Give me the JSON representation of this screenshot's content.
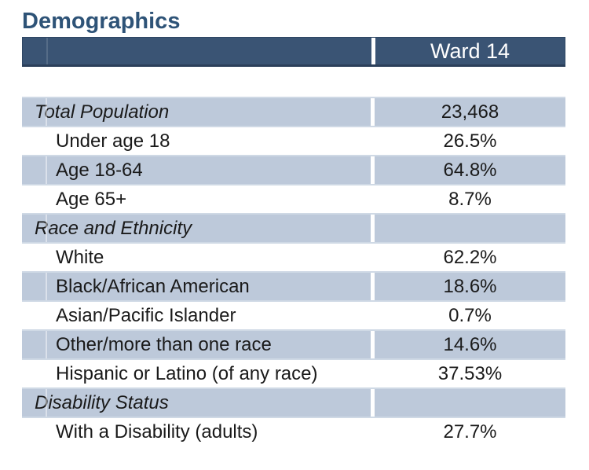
{
  "title": "Demographics",
  "table": {
    "header": {
      "value_col": "Ward 14"
    },
    "rows": [
      {
        "label": "Total Population",
        "value": "23,468",
        "type": "section",
        "shaded": true
      },
      {
        "label": "Under age 18",
        "value": "26.5%",
        "type": "item",
        "shaded": false
      },
      {
        "label": "Age 18-64",
        "value": "64.8%",
        "type": "item",
        "shaded": true
      },
      {
        "label": "Age 65+",
        "value": "8.7%",
        "type": "item",
        "shaded": false
      },
      {
        "label": "Race and Ethnicity",
        "value": "",
        "type": "section",
        "shaded": true
      },
      {
        "label": "White",
        "value": "62.2%",
        "type": "item",
        "shaded": false
      },
      {
        "label": "Black/African American",
        "value": "18.6%",
        "type": "item",
        "shaded": true
      },
      {
        "label": "Asian/Pacific Islander",
        "value": "0.7%",
        "type": "item",
        "shaded": false
      },
      {
        "label": "Other/more than one race",
        "value": "14.6%",
        "type": "item",
        "shaded": true
      },
      {
        "label": "Hispanic or Latino (of any race)",
        "value": "37.53%",
        "type": "item",
        "shaded": false
      },
      {
        "label": "Disability Status",
        "value": "",
        "type": "section",
        "shaded": true
      },
      {
        "label": "With a Disability (adults)",
        "value": "27.7%",
        "type": "item",
        "shaded": false
      }
    ]
  },
  "colors": {
    "title_text": "#2e5377",
    "header_bg": "#3a5474",
    "header_border": "#2b3f5a",
    "header_text": "#ffffff",
    "row_shaded_bg": "#bdc9da",
    "row_border": "#cfd9e5",
    "body_text": "#1a1a1a",
    "page_bg": "#ffffff"
  }
}
